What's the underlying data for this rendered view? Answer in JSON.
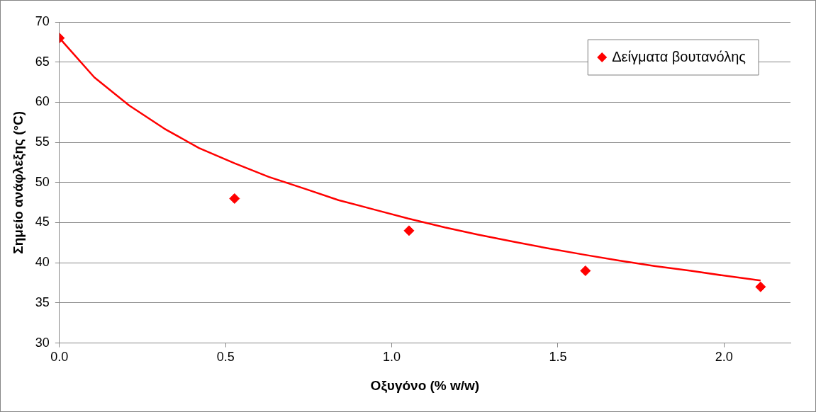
{
  "chart_data": {
    "type": "scatter",
    "xlabel": "Οξυγόνο (% w/w)",
    "ylabel": "Σημείο ανάφλεξης (°C)",
    "xlim": [
      0,
      2.2
    ],
    "xticks": [
      {
        "value": 0,
        "label": "0.0"
      },
      {
        "value": 0.5,
        "label": "0.5"
      },
      {
        "value": 1,
        "label": "1.0"
      },
      {
        "value": 1.5,
        "label": "1.5"
      },
      {
        "value": 2,
        "label": "2.0"
      }
    ],
    "ylim": [
      30,
      70
    ],
    "yticks": [
      30,
      35,
      40,
      45,
      50,
      55,
      60,
      65,
      70
    ],
    "grid": "y",
    "legend": "top right",
    "marker": "diamond",
    "series": [
      {
        "name": "Δείγματα βουτανόλης",
        "type": "scatter",
        "color": "#ff0000",
        "x": [
          0,
          0.527,
          1.052,
          1.583,
          2.11
        ],
        "values": [
          68,
          48,
          44,
          39,
          37
        ]
      },
      {
        "type": "line",
        "color": "#ff0000",
        "marker": "none",
        "x": [
          0,
          0.105,
          0.21,
          0.316,
          0.42,
          0.527,
          0.63,
          0.74,
          0.84,
          0.95,
          1.05,
          1.16,
          1.26,
          1.37,
          1.47,
          1.58,
          1.68,
          1.79,
          1.9,
          2.0,
          2.11
        ],
        "values": [
          68,
          63.1,
          59.6,
          56.7,
          54.3,
          52.4,
          50.7,
          49.2,
          47.8,
          46.6,
          45.5,
          44.4,
          43.5,
          42.6,
          41.8,
          41.0,
          40.3,
          39.6,
          39.0,
          38.4,
          37.8
        ]
      }
    ]
  }
}
